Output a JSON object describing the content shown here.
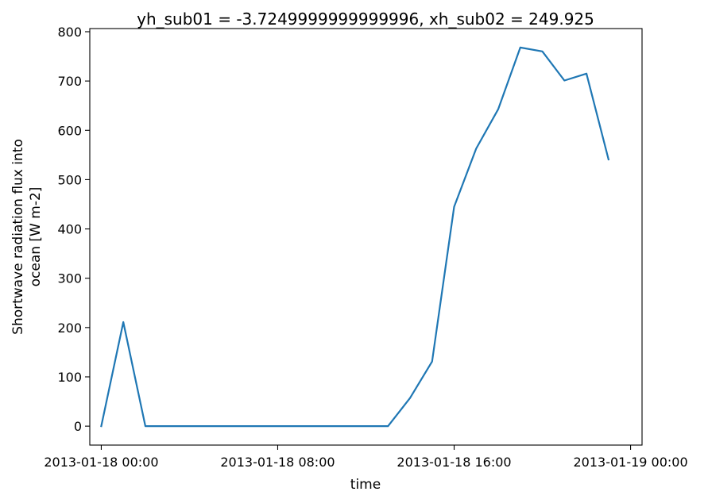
{
  "chart_data": {
    "type": "line",
    "title": "yh_sub01 = -3.7249999999999996, xh_sub02 = 249.925",
    "xlabel": "time",
    "ylabel_lines": [
      "Shortwave radiation flux into",
      "ocean [W m-2]"
    ],
    "x_unit": "hours",
    "x_tick_values": [
      0,
      8,
      16,
      24
    ],
    "x_tick_labels": [
      "2013-01-18 00:00",
      "2013-01-18 08:00",
      "2013-01-18 16:00",
      "2013-01-19 00:00"
    ],
    "xlim": [
      -0.52,
      24.52
    ],
    "y_ticks": [
      0,
      100,
      200,
      300,
      400,
      500,
      600,
      700,
      800
    ],
    "ylim": [
      -38.4,
      806.4
    ],
    "grid": false,
    "series": [
      {
        "color": "#1f77b4",
        "x": [
          0,
          1,
          2,
          3,
          4,
          5,
          6,
          7,
          8,
          9,
          10,
          11,
          12,
          13,
          14,
          15,
          16,
          17,
          18,
          19,
          20,
          21,
          22,
          23
        ],
        "y": [
          0,
          211,
          0,
          0,
          0,
          0,
          0,
          0,
          0,
          0,
          0,
          0,
          0,
          0,
          57,
          131,
          445,
          563,
          643,
          768,
          760,
          701,
          715,
          541
        ]
      }
    ]
  }
}
